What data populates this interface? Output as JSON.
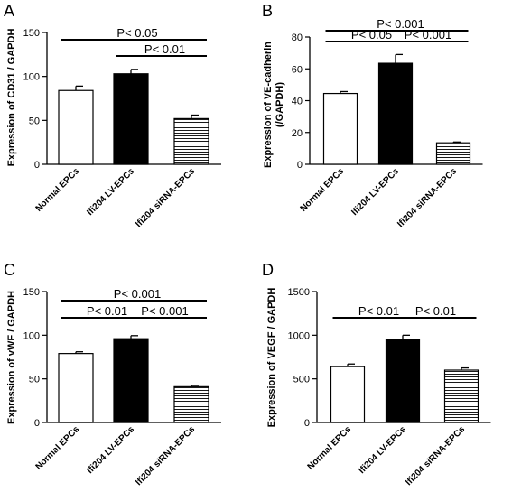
{
  "chart_data": [
    {
      "panel": "A",
      "type": "bar",
      "ylabel": "Expression of CD31 / GAPDH",
      "ylim": [
        0,
        150
      ],
      "yticks": [
        0,
        50,
        100,
        150
      ],
      "categories": [
        "Normal EPCs",
        "Ifi204 LV-EPCs",
        "Ifi204 siRNA-EPCs"
      ],
      "values": [
        84,
        103,
        52
      ],
      "errors": [
        5,
        5,
        4
      ],
      "fills": [
        "white",
        "black",
        "striped"
      ],
      "significance": [
        {
          "from": 0,
          "to": 2,
          "label": "P< 0.05"
        },
        {
          "from": 1,
          "to": 2,
          "label": "P< 0.01"
        }
      ]
    },
    {
      "panel": "B",
      "type": "bar",
      "ylabel": "Expression of VE-cadherin (/GAPDH)",
      "ylim": [
        0,
        80
      ],
      "yticks": [
        0,
        20,
        40,
        60,
        80
      ],
      "categories": [
        "Normal EPCs",
        "Ifi204 LV-EPCs",
        "Ifi204 siRNA-EPCs"
      ],
      "values": [
        44.5,
        63.5,
        13.5
      ],
      "errors": [
        1.2,
        5.5,
        0.5
      ],
      "fills": [
        "white",
        "black",
        "striped"
      ],
      "significance": [
        {
          "from": 0,
          "to": 2,
          "label": "P< 0.001"
        },
        {
          "from": 0,
          "to": 1,
          "label": "P< 0.05"
        },
        {
          "from": 1,
          "to": 2,
          "label": "P< 0.001"
        }
      ]
    },
    {
      "panel": "C",
      "type": "bar",
      "ylabel": "Expression of vWF / GAPDH",
      "ylim": [
        0,
        150
      ],
      "yticks": [
        0,
        50,
        100,
        150
      ],
      "categories": [
        "Normal EPCs",
        "Ifi204 LV-EPCs",
        "Ifi204 siRNA-EPCs"
      ],
      "values": [
        79,
        96,
        41
      ],
      "errors": [
        2,
        3.5,
        1.5
      ],
      "fills": [
        "white",
        "black",
        "striped"
      ],
      "significance": [
        {
          "from": 0,
          "to": 2,
          "label": "P< 0.001"
        },
        {
          "from": 0,
          "to": 1,
          "label": "P< 0.01"
        },
        {
          "from": 1,
          "to": 2,
          "label": "P< 0.001"
        }
      ]
    },
    {
      "panel": "D",
      "type": "bar",
      "ylabel": "Expression of VEGF / GAPDH",
      "ylim": [
        0,
        1500
      ],
      "yticks": [
        0,
        500,
        1000,
        1500
      ],
      "categories": [
        "Normal EPCs",
        "Ifi204 LV-EPCs",
        "Ifi204 siRNA-EPCs"
      ],
      "values": [
        640,
        955,
        600
      ],
      "errors": [
        30,
        45,
        25
      ],
      "fills": [
        "white",
        "black",
        "striped"
      ],
      "significance": [
        {
          "from": 0,
          "to": 1,
          "label": "P< 0.01"
        },
        {
          "from": 1,
          "to": 2,
          "label": "P< 0.01"
        }
      ]
    }
  ]
}
